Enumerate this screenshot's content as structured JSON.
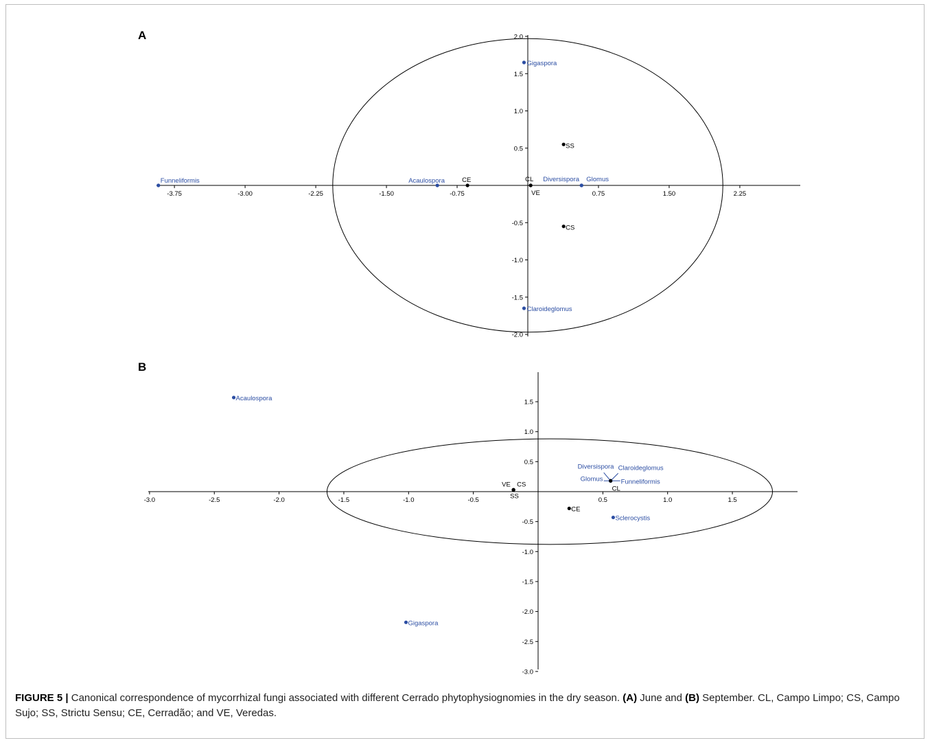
{
  "chart_data": [
    {
      "panel": "A",
      "type": "scatter",
      "xticks": [
        -3.75,
        -3.0,
        -2.25,
        -1.5,
        -0.75,
        0.75,
        1.5,
        2.25
      ],
      "xtick_labels": [
        "-3.75",
        "-3.00",
        "-2.25",
        "-1.50",
        "-0.75",
        "0.75",
        "1.50",
        "2.25"
      ],
      "yticks": [
        2.0,
        1.5,
        1.0,
        0.5,
        -0.5,
        -1.0,
        -1.5,
        -2.0
      ],
      "ytick_labels": [
        "2.0",
        "1.5",
        "1.0",
        "0.5",
        "-0.5",
        "-1.0",
        "-1.5",
        "-2.0"
      ],
      "xlim": [
        -4.0,
        2.95
      ],
      "ylim": [
        -2.0,
        2.0
      ],
      "ellipse": {
        "cx": 0.0,
        "cy": 0.0,
        "rx": 2.07,
        "ry": 1.97
      },
      "genera": [
        {
          "name": "Funneliformis",
          "x": -3.92,
          "y": 0.0
        },
        {
          "name": "Acaulospora",
          "x": -0.96,
          "y": 0.0
        },
        {
          "name": "Gigaspora",
          "x": -0.04,
          "y": 1.65
        },
        {
          "name": "Diversispora",
          "x": 0.57,
          "y": 0.0
        },
        {
          "name": "Glomus",
          "x": 0.57,
          "y": 0.0
        },
        {
          "name": "Claroideglomus",
          "x": -0.04,
          "y": -1.65
        }
      ],
      "sites": [
        {
          "name": "SS",
          "x": 0.38,
          "y": 0.55
        },
        {
          "name": "CE",
          "x": -0.64,
          "y": 0.0
        },
        {
          "name": "CL",
          "x": 0.03,
          "y": 0.0
        },
        {
          "name": "VE",
          "x": 0.03,
          "y": 0.0
        },
        {
          "name": "CS",
          "x": 0.38,
          "y": -0.55
        }
      ]
    },
    {
      "panel": "B",
      "type": "scatter",
      "xticks": [
        -3.0,
        -2.5,
        -2.0,
        -1.5,
        -1.0,
        -0.5,
        0.5,
        1.0,
        1.5
      ],
      "xtick_labels": [
        "-3.0",
        "-2.5",
        "-2.0",
        "-1.5",
        "-1.0",
        "-0.5",
        "0.5",
        "1.0",
        "1.5"
      ],
      "yticks": [
        1.5,
        1.0,
        0.5,
        -0.5,
        -1.0,
        -1.5,
        -2.0,
        -2.5,
        -3.0
      ],
      "ytick_labels": [
        "1.5",
        "1.0",
        "0.5",
        "-0.5",
        "-1.0",
        "-1.5",
        "-2.0",
        "-2.5",
        "-3.0"
      ],
      "xlim": [
        -3.0,
        2.0
      ],
      "ylim": [
        -3.0,
        2.0
      ],
      "ellipse": {
        "cx": 0.09,
        "cy": 0.0,
        "rx": 1.72,
        "ry": 0.88
      },
      "genera": [
        {
          "name": "Acaulospora",
          "x": -2.35,
          "y": 1.57
        },
        {
          "name": "Diversispora",
          "x": 0.56,
          "y": 0.18
        },
        {
          "name": "Claroideglomus",
          "x": 0.56,
          "y": 0.18
        },
        {
          "name": "Glomus",
          "x": 0.56,
          "y": 0.18
        },
        {
          "name": "Funneliformis",
          "x": 0.56,
          "y": 0.18
        },
        {
          "name": "Sclerocystis",
          "x": 0.58,
          "y": -0.43
        },
        {
          "name": "Gigaspora",
          "x": -1.02,
          "y": -2.18
        }
      ],
      "sites": [
        {
          "name": "VE",
          "x": -0.19,
          "y": 0.03
        },
        {
          "name": "CS",
          "x": -0.19,
          "y": 0.03
        },
        {
          "name": "SS",
          "x": -0.19,
          "y": 0.03
        },
        {
          "name": "CL",
          "x": 0.56,
          "y": 0.18
        },
        {
          "name": "CE",
          "x": 0.24,
          "y": -0.28
        }
      ]
    }
  ],
  "colors": {
    "genus": "#2c4ea3",
    "site": "#000000",
    "axis": "#000000"
  },
  "caption": {
    "figure_number": "FIGURE 5",
    "separator": "|",
    "text_1": "Canonical correspondence of mycorrhizal fungi associated with different Cerrado phytophysiognomies in the dry season.",
    "label_a": "(A)",
    "text_2": "June and",
    "label_b": "(B)",
    "text_3": "September. CL, Campo Limpo; CS, Campo Sujo; SS, Strictu Sensu; CE, Cerradão; and VE, Veredas."
  }
}
